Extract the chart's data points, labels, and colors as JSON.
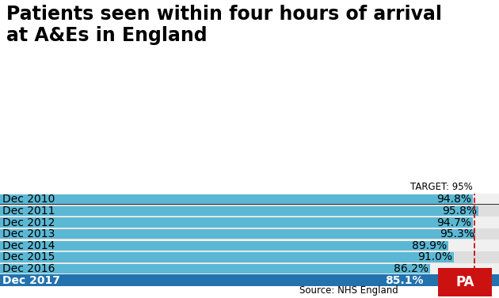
{
  "title": "Patients seen within four hours of arrival\nat A&Es in England",
  "categories": [
    "Dec 2010",
    "Dec 2011",
    "Dec 2012",
    "Dec 2013",
    "Dec 2014",
    "Dec 2015",
    "Dec 2016",
    "Dec 2017"
  ],
  "values": [
    94.8,
    95.8,
    94.7,
    95.3,
    89.9,
    91.0,
    86.2,
    85.1
  ],
  "bar_color_normal": "#5BB8D4",
  "bar_color_last": "#2272AE",
  "last_label_color": "#FFFFFF",
  "last_row_bg": "#2272AE",
  "target": 95.0,
  "target_label": "TARGET: 95%",
  "xmin": 0.0,
  "xmax": 100.0,
  "bg_color": "#FFFFFF",
  "row_bg_even": "#DEDEDF",
  "row_bg_odd": "#F0F0F0",
  "source_text": "Source: NHS England",
  "pa_text": "PA",
  "pa_bg": "#CC1111",
  "dashed_line_color": "#CC1111",
  "title_fontsize": 17,
  "label_fontsize": 10,
  "value_fontsize": 10,
  "target_fontsize": 8.5,
  "source_fontsize": 8.5
}
